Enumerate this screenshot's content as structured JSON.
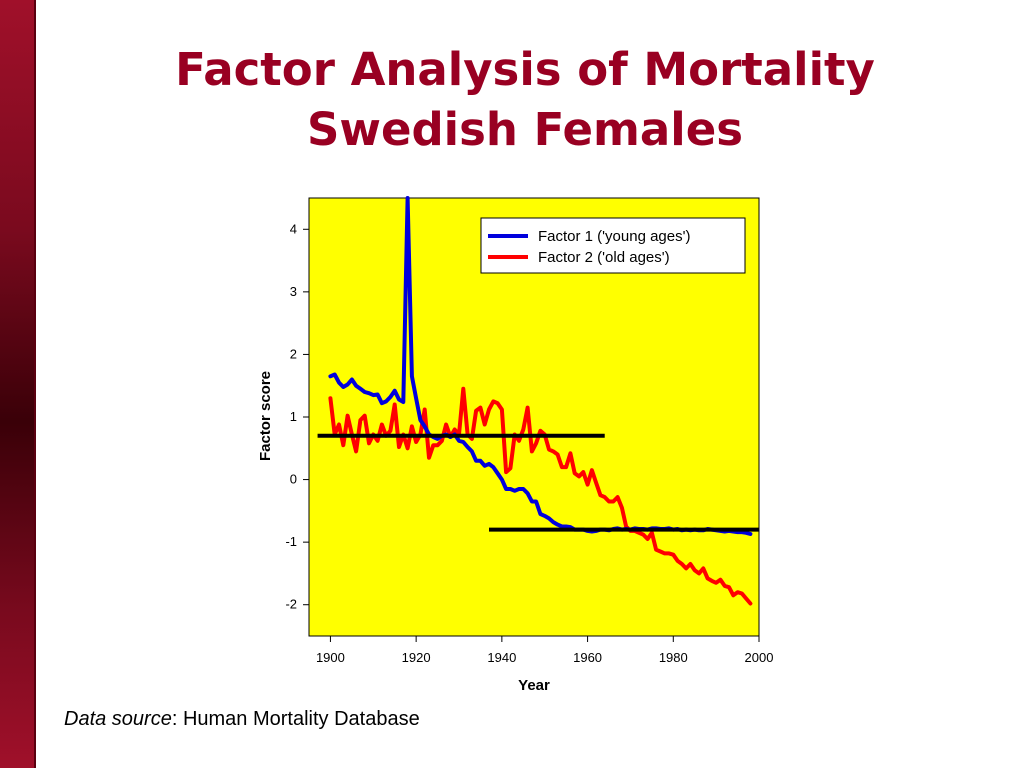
{
  "slide": {
    "title_line1": "Factor Analysis of Mortality",
    "title_line2": "Swedish Females",
    "source_label": "Data source",
    "source_text": ": Human Mortality Database",
    "colors": {
      "title": "#990022",
      "plot_background": "#ffff00",
      "sidebar": "#7a0a1e"
    }
  },
  "chart_data": {
    "type": "line",
    "xlabel": "Year",
    "ylabel": "Factor score",
    "xlim": [
      1895,
      2000
    ],
    "ylim": [
      -2.5,
      4.5
    ],
    "xticks": [
      1900,
      1920,
      1940,
      1960,
      1980,
      2000
    ],
    "yticks": [
      -2,
      -1,
      0,
      1,
      2,
      3,
      4
    ],
    "grid": false,
    "legend_position": "top-right",
    "series": [
      {
        "name": "Factor 1 ('young ages')",
        "color": "#0000dd",
        "x": [
          1900,
          1901,
          1902,
          1903,
          1904,
          1905,
          1906,
          1907,
          1908,
          1909,
          1910,
          1911,
          1912,
          1913,
          1914,
          1915,
          1916,
          1917,
          1918,
          1919,
          1920,
          1921,
          1922,
          1923,
          1924,
          1925,
          1926,
          1927,
          1928,
          1929,
          1930,
          1931,
          1932,
          1933,
          1934,
          1935,
          1936,
          1937,
          1938,
          1939,
          1940,
          1941,
          1942,
          1943,
          1944,
          1945,
          1946,
          1947,
          1948,
          1949,
          1950,
          1951,
          1952,
          1953,
          1954,
          1955,
          1956,
          1957,
          1958,
          1959,
          1960,
          1961,
          1962,
          1963,
          1964,
          1965,
          1966,
          1967,
          1968,
          1969,
          1970,
          1971,
          1972,
          1973,
          1974,
          1975,
          1976,
          1977,
          1978,
          1979,
          1980,
          1981,
          1982,
          1983,
          1984,
          1985,
          1986,
          1987,
          1988,
          1989,
          1990,
          1991,
          1992,
          1993,
          1994,
          1995,
          1996,
          1997,
          1998
        ],
        "y": [
          1.65,
          1.68,
          1.55,
          1.48,
          1.52,
          1.6,
          1.5,
          1.45,
          1.4,
          1.38,
          1.35,
          1.36,
          1.22,
          1.25,
          1.32,
          1.42,
          1.28,
          1.24,
          4.5,
          1.65,
          1.3,
          0.95,
          0.85,
          0.72,
          0.68,
          0.65,
          0.7,
          0.72,
          0.68,
          0.72,
          0.62,
          0.6,
          0.52,
          0.45,
          0.3,
          0.3,
          0.22,
          0.25,
          0.2,
          0.1,
          0.0,
          -0.15,
          -0.15,
          -0.18,
          -0.15,
          -0.15,
          -0.22,
          -0.35,
          -0.35,
          -0.55,
          -0.58,
          -0.62,
          -0.68,
          -0.72,
          -0.75,
          -0.75,
          -0.76,
          -0.8,
          -0.8,
          -0.8,
          -0.82,
          -0.83,
          -0.82,
          -0.8,
          -0.8,
          -0.81,
          -0.79,
          -0.78,
          -0.8,
          -0.79,
          -0.8,
          -0.78,
          -0.79,
          -0.79,
          -0.8,
          -0.78,
          -0.78,
          -0.79,
          -0.79,
          -0.78,
          -0.8,
          -0.79,
          -0.81,
          -0.8,
          -0.81,
          -0.8,
          -0.81,
          -0.81,
          -0.79,
          -0.8,
          -0.81,
          -0.82,
          -0.83,
          -0.82,
          -0.83,
          -0.84,
          -0.84,
          -0.85,
          -0.87
        ]
      },
      {
        "name": "Factor 2 ('old ages')",
        "color": "#ff0000",
        "x": [
          1900,
          1901,
          1902,
          1903,
          1904,
          1905,
          1906,
          1907,
          1908,
          1909,
          1910,
          1911,
          1912,
          1913,
          1914,
          1915,
          1916,
          1917,
          1918,
          1919,
          1920,
          1921,
          1922,
          1923,
          1924,
          1925,
          1926,
          1927,
          1928,
          1929,
          1930,
          1931,
          1932,
          1933,
          1934,
          1935,
          1936,
          1937,
          1938,
          1939,
          1940,
          1941,
          1942,
          1943,
          1944,
          1945,
          1946,
          1947,
          1948,
          1949,
          1950,
          1951,
          1952,
          1953,
          1954,
          1955,
          1956,
          1957,
          1958,
          1959,
          1960,
          1961,
          1962,
          1963,
          1964,
          1965,
          1966,
          1967,
          1968,
          1969,
          1970,
          1971,
          1972,
          1973,
          1974,
          1975,
          1976,
          1977,
          1978,
          1979,
          1980,
          1981,
          1982,
          1983,
          1984,
          1985,
          1986,
          1987,
          1988,
          1989,
          1990,
          1991,
          1992,
          1993,
          1994,
          1995,
          1996,
          1997,
          1998
        ],
        "y": [
          1.3,
          0.72,
          0.88,
          0.55,
          1.02,
          0.72,
          0.45,
          0.95,
          1.02,
          0.58,
          0.72,
          0.62,
          0.88,
          0.7,
          0.78,
          1.2,
          0.52,
          0.72,
          0.5,
          0.85,
          0.6,
          0.72,
          1.12,
          0.35,
          0.55,
          0.55,
          0.62,
          0.88,
          0.68,
          0.8,
          0.72,
          1.45,
          0.72,
          0.65,
          1.1,
          1.15,
          0.88,
          1.12,
          1.25,
          1.22,
          1.12,
          0.12,
          0.18,
          0.72,
          0.62,
          0.8,
          1.15,
          0.45,
          0.58,
          0.78,
          0.72,
          0.48,
          0.45,
          0.4,
          0.2,
          0.2,
          0.42,
          0.1,
          0.05,
          0.12,
          -0.08,
          0.15,
          -0.05,
          -0.25,
          -0.28,
          -0.35,
          -0.35,
          -0.28,
          -0.45,
          -0.75,
          -0.82,
          -0.82,
          -0.85,
          -0.88,
          -0.95,
          -0.85,
          -1.12,
          -1.15,
          -1.18,
          -1.18,
          -1.2,
          -1.3,
          -1.35,
          -1.42,
          -1.35,
          -1.45,
          -1.5,
          -1.42,
          -1.58,
          -1.62,
          -1.65,
          -1.6,
          -1.7,
          -1.72,
          -1.85,
          -1.8,
          -1.82,
          -1.9,
          -1.98
        ]
      }
    ],
    "reference_lines": [
      {
        "x_start": 1897,
        "x_end": 1964,
        "y": 0.7,
        "color": "#000000"
      },
      {
        "x_start": 1937,
        "x_end": 2000,
        "y": -0.8,
        "color": "#000000"
      }
    ]
  }
}
